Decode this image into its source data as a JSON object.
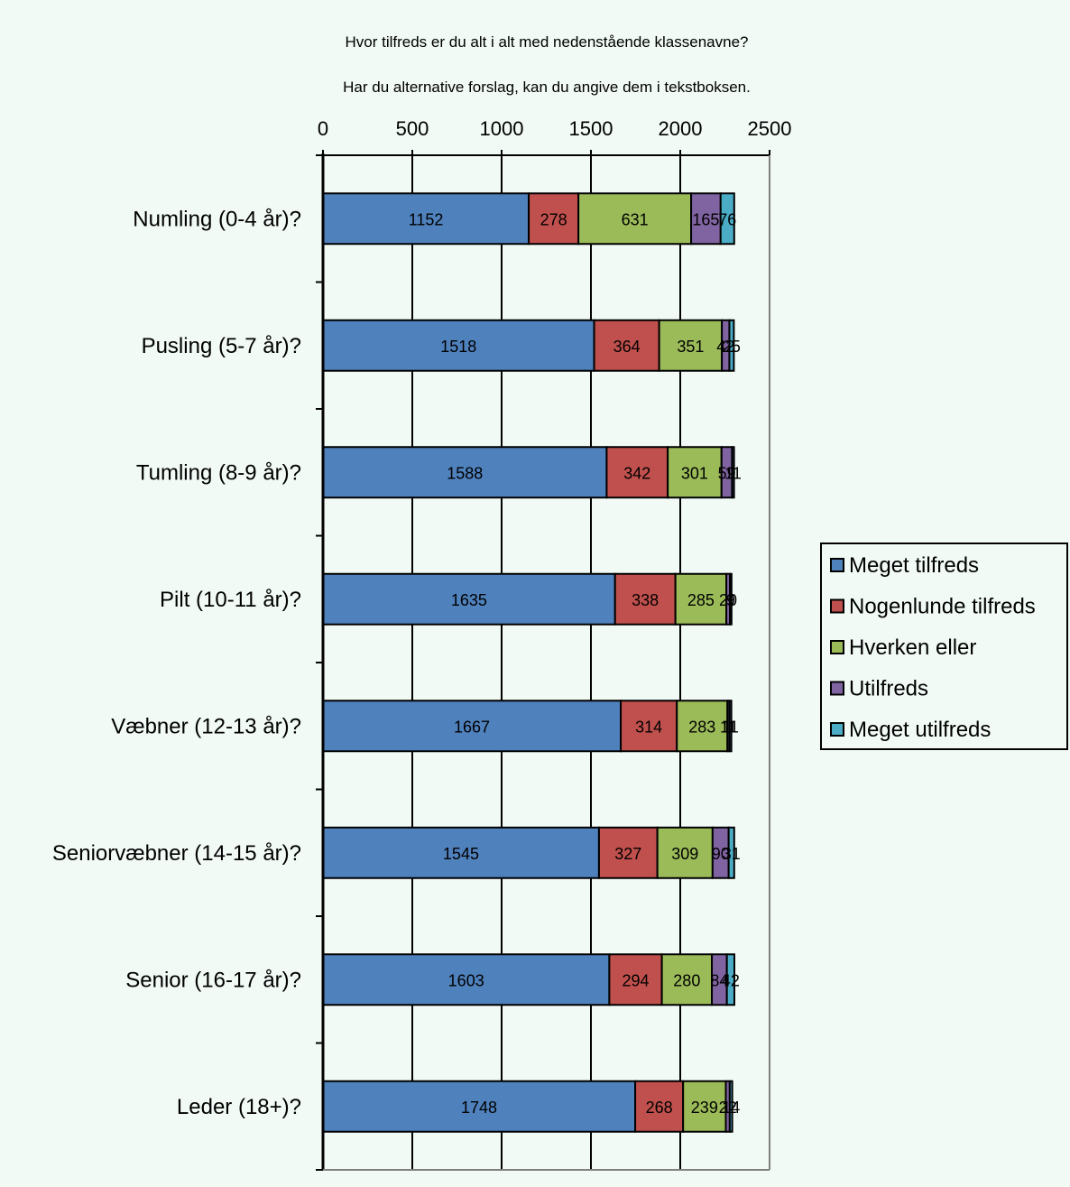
{
  "chart_data": {
    "type": "bar",
    "orientation": "horizontal",
    "stacked": true,
    "title": "Hvor tilfreds er du alt i alt med nedenstående klassenavne?",
    "subtitle": "Har du alternative forslag, kan du angive dem i tekstboksen.",
    "xlim": [
      0,
      2500
    ],
    "x_ticks": [
      "0",
      "500",
      "1000",
      "1500",
      "2000",
      "2500"
    ],
    "grid": true,
    "legend_position": "right",
    "categories": [
      "Numling (0-4 år)?",
      "Pusling (5-7 år)?",
      "Tumling (8-9 år)?",
      "Pilt (10-11 år)?",
      "Væbner (12-13 år)?",
      "Seniorvæbner (14-15 år)?",
      "Senior (16-17 år)?",
      "Leder (18+)?"
    ],
    "series": [
      {
        "name": "Meget tilfreds",
        "color": "#4F81BD",
        "values": [
          1152,
          1518,
          1588,
          1635,
          1667,
          1545,
          1603,
          1748
        ],
        "labels": [
          "1152",
          "1518",
          "1588",
          "1635",
          "1667",
          "1545",
          "1603",
          "1748"
        ]
      },
      {
        "name": "Nogenlunde tilfreds",
        "color": "#C0504D",
        "values": [
          278,
          364,
          342,
          338,
          314,
          327,
          294,
          268
        ],
        "labels": [
          "278",
          "364",
          "342",
          "338",
          "314",
          "327",
          "294",
          "268"
        ]
      },
      {
        "name": "Hverken eller",
        "color": "#9BBB59",
        "values": [
          631,
          351,
          301,
          285,
          283,
          309,
          280,
          239
        ],
        "labels": [
          "631",
          "351",
          "301",
          "285",
          "283",
          "309",
          "280",
          "239"
        ]
      },
      {
        "name": "Utilfreds",
        "color": "#8064A2",
        "values": [
          165,
          42,
          59,
          20,
          11,
          90,
          84,
          22
        ],
        "labels": [
          "165",
          "42",
          "59",
          "20",
          "11",
          "90",
          "84",
          "22"
        ]
      },
      {
        "name": "Meget utilfreds",
        "color": "#4BACC6",
        "values": [
          76,
          25,
          11,
          9,
          11,
          31,
          42,
          14
        ],
        "labels": [
          "76",
          "25",
          "11",
          "9",
          "11",
          "31",
          "42",
          "14"
        ]
      }
    ]
  }
}
